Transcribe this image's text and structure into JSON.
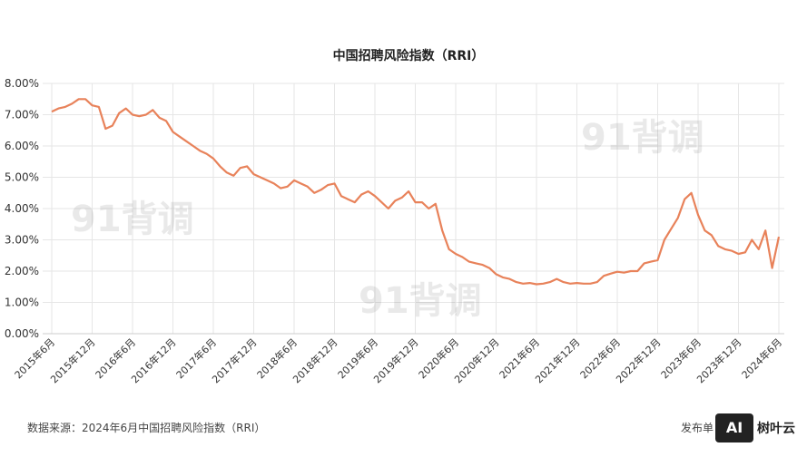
{
  "chart_data": {
    "type": "line",
    "title": "中国招聘风险指数（RRI）",
    "categories": [
      "2015年6月",
      null,
      null,
      null,
      null,
      null,
      "2015年12月",
      null,
      null,
      null,
      null,
      null,
      "2016年6月",
      null,
      null,
      null,
      null,
      null,
      "2016年12月",
      null,
      null,
      null,
      null,
      null,
      "2017年6月",
      null,
      null,
      null,
      null,
      null,
      "2017年12月",
      null,
      null,
      null,
      null,
      null,
      "2018年6月",
      null,
      null,
      null,
      null,
      null,
      "2018年12月",
      null,
      null,
      null,
      null,
      null,
      "2019年6月",
      null,
      null,
      null,
      null,
      null,
      "2019年12月",
      null,
      null,
      null,
      null,
      null,
      "2020年6月",
      null,
      null,
      null,
      null,
      null,
      "2020年12月",
      null,
      null,
      null,
      null,
      null,
      "2021年6月",
      null,
      null,
      null,
      null,
      null,
      "2021年12月",
      null,
      null,
      null,
      null,
      null,
      "2022年6月",
      null,
      null,
      null,
      null,
      null,
      "2022年12月",
      null,
      null,
      null,
      null,
      null,
      "2023年6月",
      null,
      null,
      null,
      null,
      null,
      "2023年12月",
      null,
      null,
      null,
      null,
      null,
      "2024年6月"
    ],
    "series": [
      {
        "color": "#e8825a",
        "values": [
          7.1,
          7.2,
          7.25,
          7.35,
          7.5,
          7.5,
          7.3,
          7.25,
          6.55,
          6.65,
          7.05,
          7.2,
          7.0,
          6.95,
          7.0,
          7.15,
          6.9,
          6.8,
          6.45,
          6.3,
          6.15,
          6.0,
          5.85,
          5.75,
          5.6,
          5.35,
          5.15,
          5.05,
          5.3,
          5.35,
          5.1,
          5.0,
          4.9,
          4.8,
          4.65,
          4.7,
          4.9,
          4.8,
          4.7,
          4.5,
          4.6,
          4.75,
          4.8,
          4.4,
          4.3,
          4.2,
          4.45,
          4.55,
          4.4,
          4.2,
          4.0,
          4.25,
          4.35,
          4.55,
          4.2,
          4.2,
          4.0,
          4.15,
          3.3,
          2.7,
          2.55,
          2.45,
          2.3,
          2.25,
          2.2,
          2.1,
          1.9,
          1.8,
          1.75,
          1.65,
          1.6,
          1.62,
          1.58,
          1.6,
          1.65,
          1.75,
          1.65,
          1.6,
          1.62,
          1.6,
          1.6,
          1.65,
          1.85,
          1.92,
          1.98,
          1.95,
          2.0,
          2.0,
          2.25,
          2.3,
          2.35,
          3.0,
          3.35,
          3.7,
          4.3,
          4.5,
          3.8,
          3.3,
          3.15,
          2.8,
          2.7,
          2.65,
          2.55,
          2.6,
          3.0,
          2.7,
          3.3,
          2.1,
          3.1
        ]
      }
    ],
    "ylim": [
      0,
      8
    ],
    "yticks": [
      {
        "value": 0,
        "label": "0.00%"
      },
      {
        "value": 1,
        "label": "1.00%"
      },
      {
        "value": 2,
        "label": "2.00%"
      },
      {
        "value": 3,
        "label": "3.00%"
      },
      {
        "value": 4,
        "label": "4.00%"
      },
      {
        "value": 5,
        "label": "5.00%"
      },
      {
        "value": 6,
        "label": "6.00%"
      },
      {
        "value": 7,
        "label": "7.00%"
      },
      {
        "value": 8,
        "label": "8.00%"
      }
    ],
    "grid": true,
    "source": "数据来源：2024年6月中国招聘风险指数（RRI）",
    "publisher": "发布单",
    "watermark": "91背调",
    "logo": "AI",
    "logo_text": "树叶云"
  }
}
